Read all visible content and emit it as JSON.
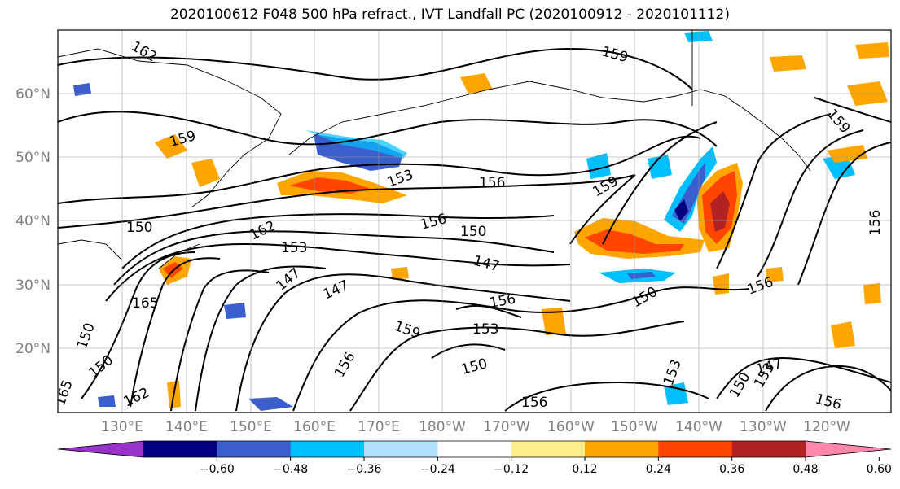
{
  "title": "2020100612 F048 500 hPa refract., IVT Landfall PC (2020100912 - 2020101112)",
  "lat_labels": [
    "60°N",
    "50°N",
    "40°N",
    "30°N",
    "20°N"
  ],
  "lon_labels": [
    "130°E",
    "140°E",
    "150°E",
    "160°E",
    "170°E",
    "180°W",
    "170°W",
    "160°W",
    "150°W",
    "140°W",
    "130°W",
    "120°W"
  ],
  "contour_labels": [
    "162",
    "159",
    "159",
    "153",
    "156",
    "159",
    "150",
    "156",
    "162",
    "150",
    "153",
    "147",
    "147",
    "147",
    "165",
    "150",
    "156",
    "150",
    "159",
    "153",
    "156",
    "150",
    "156",
    "153",
    "147",
    "156",
    "150",
    "165",
    "162",
    "159",
    "150",
    "153",
    "156",
    "156"
  ],
  "colorbar": {
    "ticks": [
      "−0.60",
      "−0.48",
      "−0.36",
      "−0.24",
      "−0.12",
      "0.12",
      "0.24",
      "0.36",
      "0.48",
      "0.60"
    ],
    "colors": [
      "#9932cc",
      "#000080",
      "#3a5fcd",
      "#00bfff",
      "#b0e2ff",
      "#ffffff",
      "#ffec8b",
      "#ffa500",
      "#ff4500",
      "#b22222",
      "#ff88aa"
    ]
  }
}
